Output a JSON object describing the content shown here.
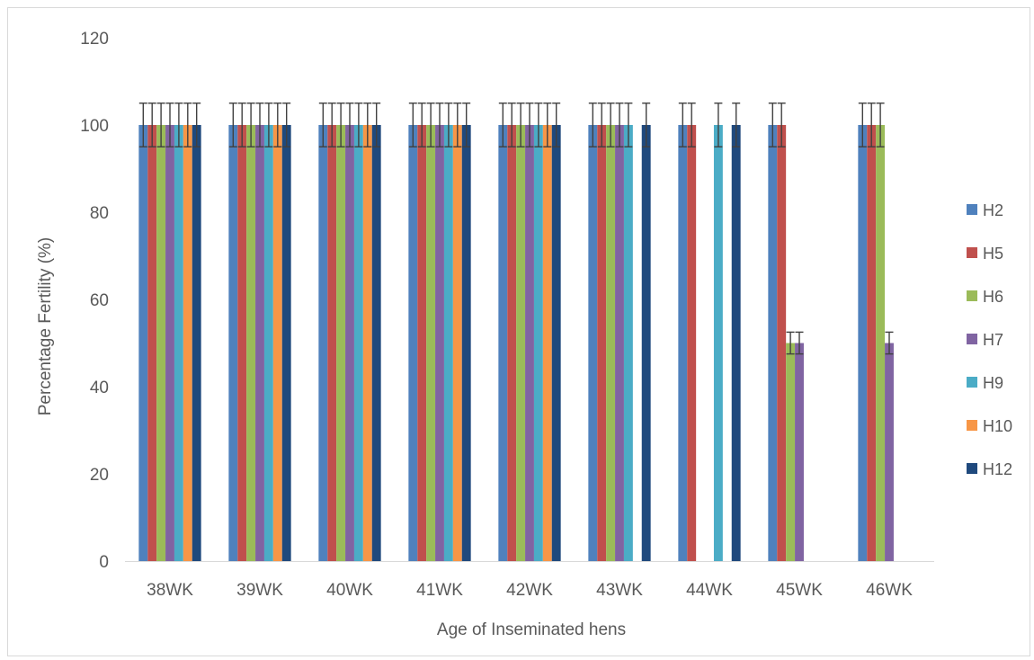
{
  "chart_data": {
    "type": "bar",
    "title": "",
    "xlabel": "Age of Inseminated hens",
    "ylabel": "Percentage Fertility (%)",
    "ylim": [
      0,
      120
    ],
    "yticks": [
      0,
      20,
      40,
      60,
      80,
      100,
      120
    ],
    "categories": [
      "38WK",
      "39WK",
      "40WK",
      "41WK",
      "42WK",
      "43WK",
      "44WK",
      "45WK",
      "46WK"
    ],
    "legend_position": "right",
    "grid": false,
    "error_bars": "5% of value",
    "series": [
      {
        "name": "H2",
        "color": "#4f81bd",
        "values": [
          100,
          100,
          100,
          100,
          100,
          100,
          100,
          100,
          100
        ]
      },
      {
        "name": "H5",
        "color": "#c0504d",
        "values": [
          100,
          100,
          100,
          100,
          100,
          100,
          100,
          100,
          100
        ]
      },
      {
        "name": "H6",
        "color": "#9bbb59",
        "values": [
          100,
          100,
          100,
          100,
          100,
          100,
          0,
          50,
          100
        ]
      },
      {
        "name": "H7",
        "color": "#8064a2",
        "values": [
          100,
          100,
          100,
          100,
          100,
          100,
          0,
          50,
          50
        ]
      },
      {
        "name": "H9",
        "color": "#4bacc6",
        "values": [
          100,
          100,
          100,
          100,
          100,
          100,
          100,
          0,
          0
        ]
      },
      {
        "name": "H10",
        "color": "#f79646",
        "values": [
          100,
          100,
          100,
          100,
          100,
          0,
          0,
          0,
          0
        ]
      },
      {
        "name": "H12",
        "color": "#1f497d",
        "values": [
          100,
          100,
          100,
          100,
          100,
          100,
          100,
          0,
          0
        ]
      }
    ]
  }
}
